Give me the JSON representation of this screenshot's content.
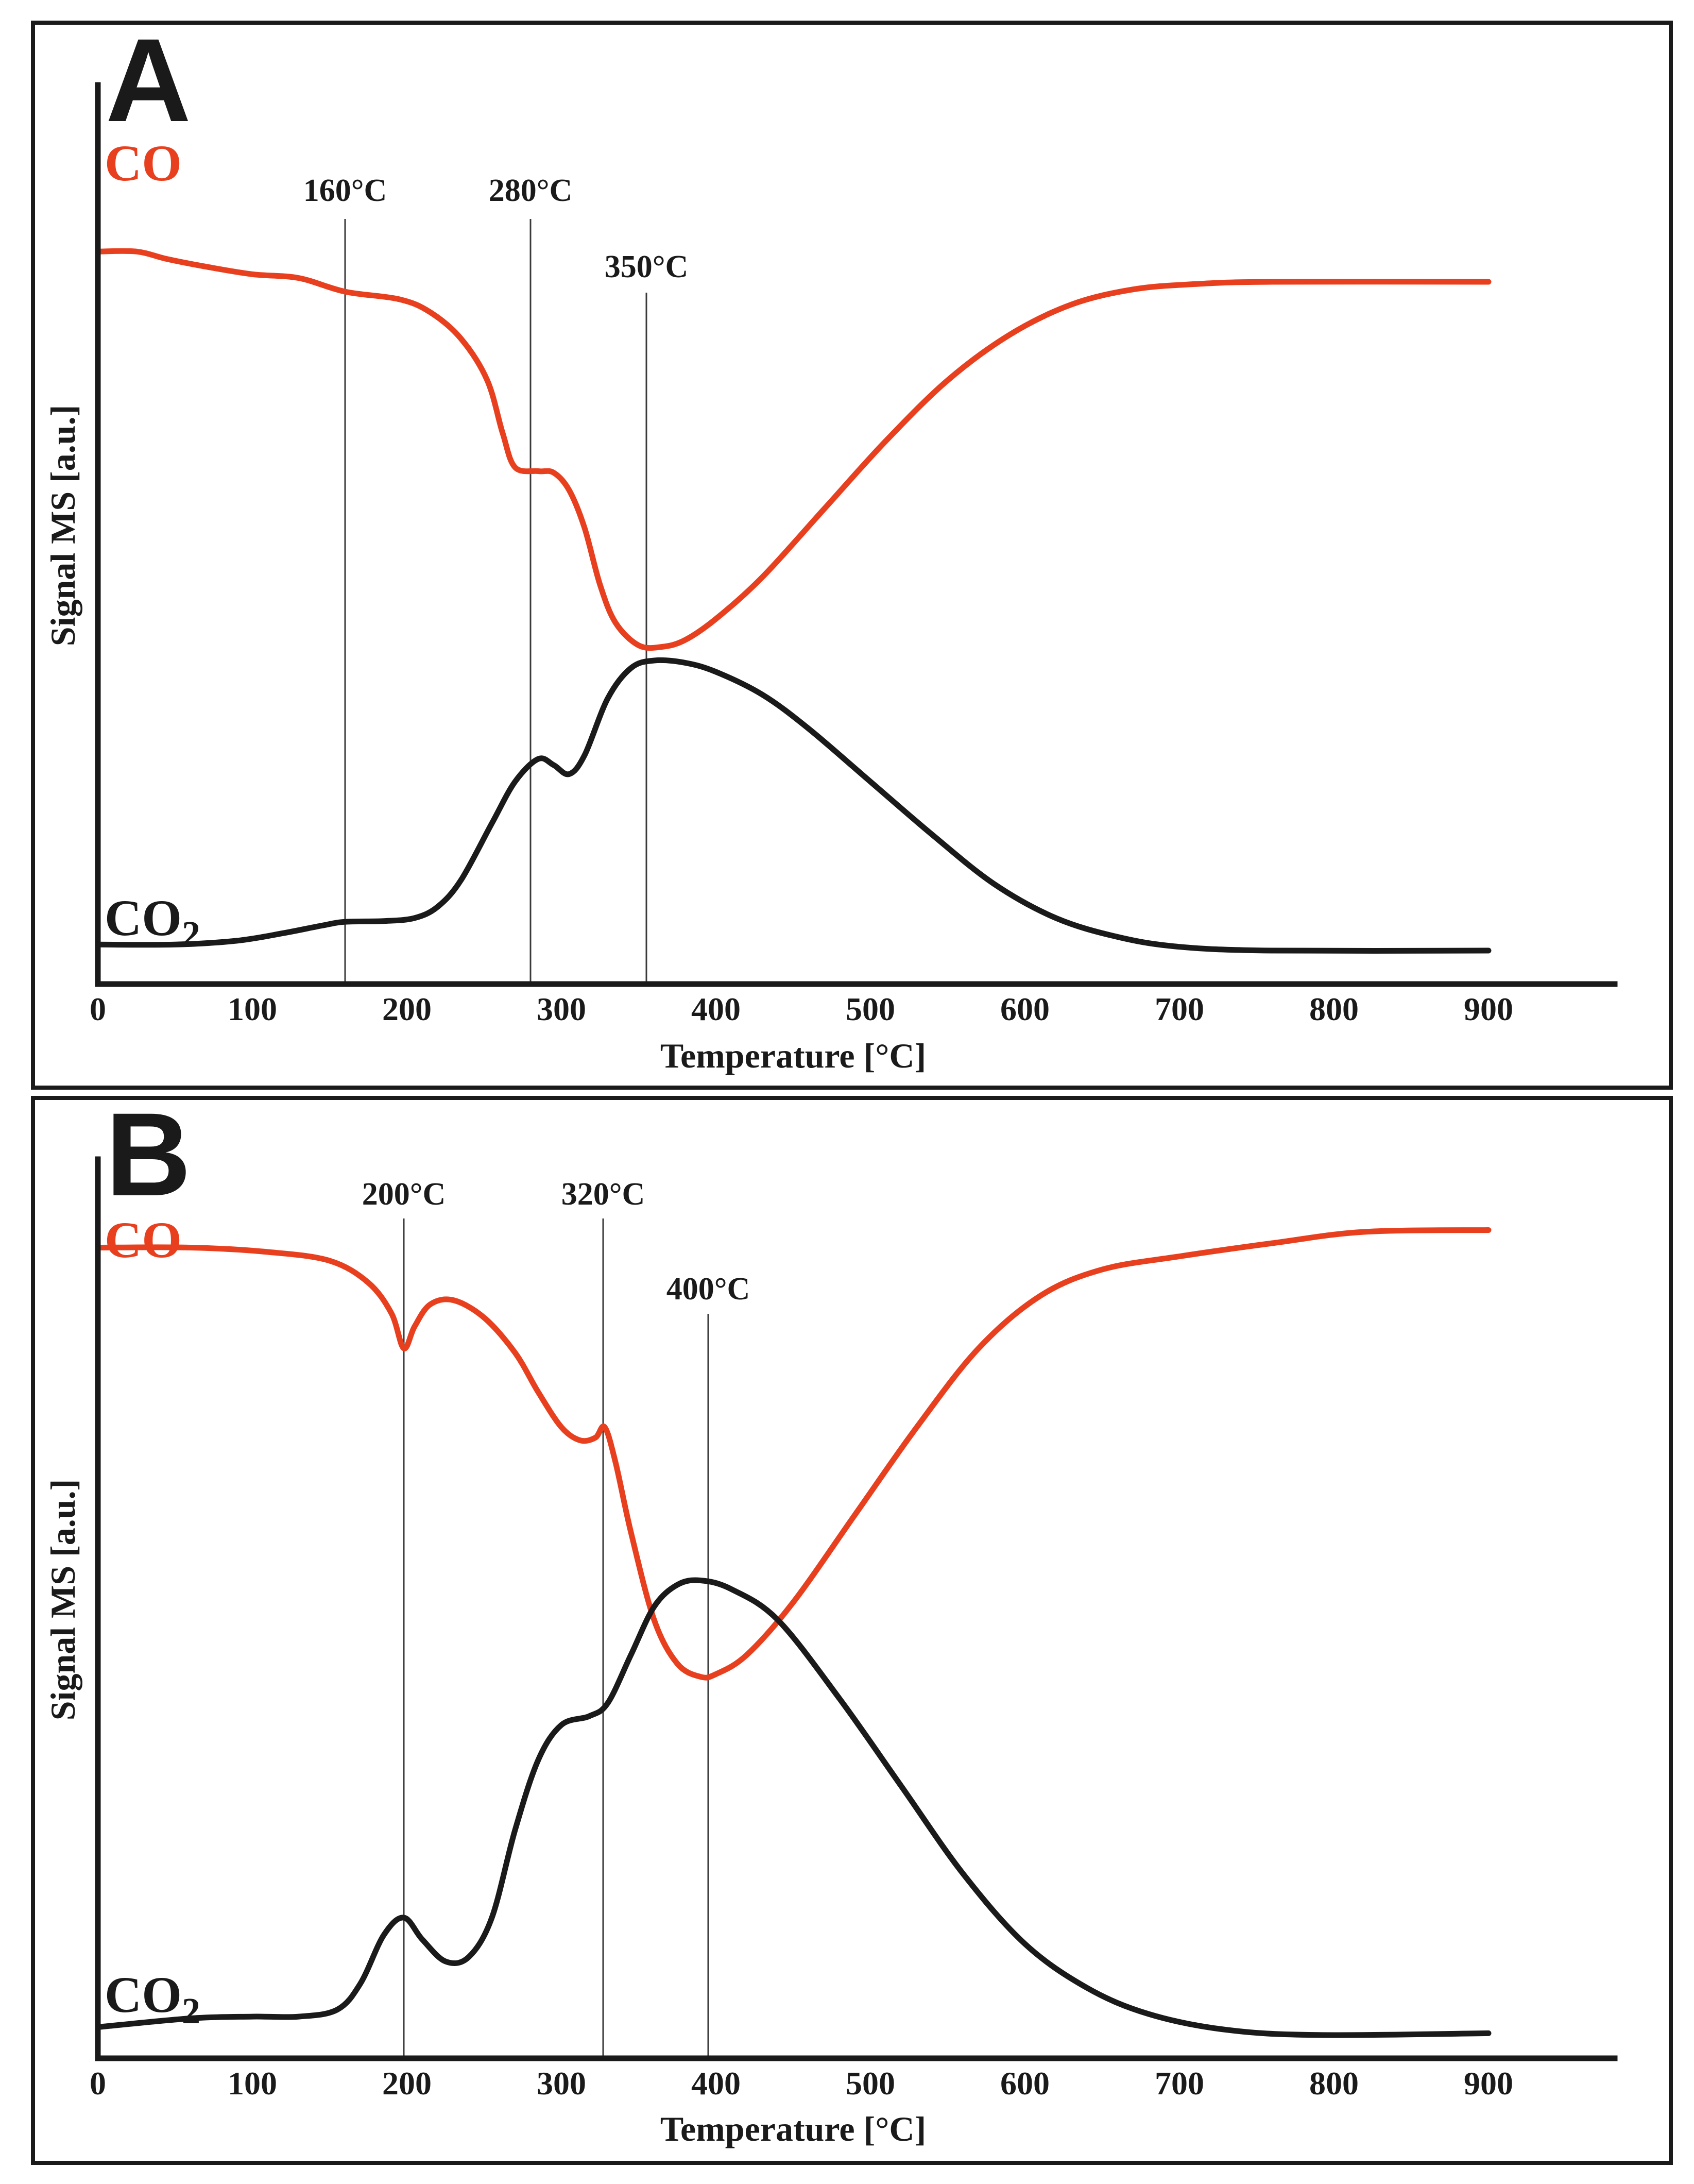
{
  "colors": {
    "CO": "#e8401f",
    "CO2": "#1a1a1a"
  },
  "chart_data": [
    {
      "type": "line",
      "panel_label": "A",
      "xlabel": "Temperature [°C]",
      "ylabel": "Signal MS [a.u.]",
      "xlim": [
        0,
        1000
      ],
      "ylim": [
        0,
        1
      ],
      "x_ticks": [
        0,
        100,
        200,
        300,
        400,
        500,
        600,
        700,
        800,
        900
      ],
      "grid": false,
      "markers": [
        {
          "x": 160,
          "label": "160°C"
        },
        {
          "x": 280,
          "label": "280°C"
        },
        {
          "x": 355,
          "label": "350°C"
        }
      ],
      "series": [
        {
          "name": "CO",
          "name_sub": "",
          "color": "#e8401f",
          "points": [
            [
              0,
              0.94
            ],
            [
              25,
              0.94
            ],
            [
              45,
              0.93
            ],
            [
              70,
              0.92
            ],
            [
              100,
              0.91
            ],
            [
              130,
              0.905
            ],
            [
              160,
              0.887
            ],
            [
              195,
              0.877
            ],
            [
              215,
              0.86
            ],
            [
              235,
              0.825
            ],
            [
              252,
              0.77
            ],
            [
              262,
              0.7
            ],
            [
              270,
              0.655
            ],
            [
              285,
              0.65
            ],
            [
              295,
              0.648
            ],
            [
              305,
              0.625
            ],
            [
              315,
              0.575
            ],
            [
              325,
              0.5
            ],
            [
              335,
              0.45
            ],
            [
              350,
              0.42
            ],
            [
              365,
              0.418
            ],
            [
              380,
              0.427
            ],
            [
              400,
              0.455
            ],
            [
              430,
              0.51
            ],
            [
              470,
              0.6
            ],
            [
              510,
              0.69
            ],
            [
              550,
              0.77
            ],
            [
              590,
              0.83
            ],
            [
              630,
              0.87
            ],
            [
              670,
              0.89
            ],
            [
              710,
              0.897
            ],
            [
              760,
              0.9
            ],
            [
              900,
              0.9
            ]
          ]
        },
        {
          "name": "CO",
          "name_sub": "2",
          "color": "#1a1a1a",
          "points": [
            [
              0,
              0.025
            ],
            [
              50,
              0.025
            ],
            [
              90,
              0.03
            ],
            [
              120,
              0.04
            ],
            [
              145,
              0.05
            ],
            [
              160,
              0.055
            ],
            [
              185,
              0.056
            ],
            [
              205,
              0.06
            ],
            [
              220,
              0.075
            ],
            [
              235,
              0.11
            ],
            [
              255,
              0.185
            ],
            [
              270,
              0.24
            ],
            [
              285,
              0.27
            ],
            [
              295,
              0.262
            ],
            [
              305,
              0.25
            ],
            [
              315,
              0.275
            ],
            [
              330,
              0.35
            ],
            [
              345,
              0.39
            ],
            [
              360,
              0.4
            ],
            [
              380,
              0.397
            ],
            [
              400,
              0.385
            ],
            [
              430,
              0.355
            ],
            [
              460,
              0.31
            ],
            [
              500,
              0.24
            ],
            [
              540,
              0.17
            ],
            [
              580,
              0.105
            ],
            [
              620,
              0.06
            ],
            [
              660,
              0.035
            ],
            [
              700,
              0.022
            ],
            [
              760,
              0.017
            ],
            [
              900,
              0.017
            ]
          ]
        }
      ]
    },
    {
      "type": "line",
      "panel_label": "B",
      "xlabel": "Temperature [°C]",
      "ylabel": "Signal MS [a.u.]",
      "xlim": [
        0,
        1000
      ],
      "ylim": [
        0,
        1
      ],
      "x_ticks": [
        0,
        100,
        200,
        300,
        400,
        500,
        600,
        700,
        800,
        900
      ],
      "grid": false,
      "markers": [
        {
          "x": 198,
          "label": "200°C"
        },
        {
          "x": 327,
          "label": "320°C"
        },
        {
          "x": 395,
          "label": "400°C"
        }
      ],
      "series": [
        {
          "name": "CO",
          "name_sub": "",
          "color": "#e8401f",
          "points": [
            [
              0,
              0.905
            ],
            [
              60,
              0.905
            ],
            [
              110,
              0.9
            ],
            [
              150,
              0.89
            ],
            [
              175,
              0.865
            ],
            [
              190,
              0.83
            ],
            [
              198,
              0.79
            ],
            [
              205,
              0.815
            ],
            [
              215,
              0.84
            ],
            [
              230,
              0.845
            ],
            [
              250,
              0.825
            ],
            [
              270,
              0.785
            ],
            [
              285,
              0.74
            ],
            [
              300,
              0.7
            ],
            [
              312,
              0.685
            ],
            [
              322,
              0.688
            ],
            [
              328,
              0.7
            ],
            [
              335,
              0.66
            ],
            [
              345,
              0.58
            ],
            [
              360,
              0.48
            ],
            [
              375,
              0.43
            ],
            [
              390,
              0.415
            ],
            [
              400,
              0.418
            ],
            [
              420,
              0.44
            ],
            [
              450,
              0.5
            ],
            [
              490,
              0.6
            ],
            [
              530,
              0.7
            ],
            [
              570,
              0.79
            ],
            [
              610,
              0.85
            ],
            [
              650,
              0.88
            ],
            [
              700,
              0.895
            ],
            [
              760,
              0.91
            ],
            [
              820,
              0.923
            ],
            [
              900,
              0.925
            ]
          ]
        },
        {
          "name": "CO",
          "name_sub": "2",
          "color": "#1a1a1a",
          "points": [
            [
              0,
              0.015
            ],
            [
              60,
              0.025
            ],
            [
              100,
              0.027
            ],
            [
              130,
              0.027
            ],
            [
              155,
              0.035
            ],
            [
              170,
              0.065
            ],
            [
              185,
              0.12
            ],
            [
              198,
              0.14
            ],
            [
              210,
              0.115
            ],
            [
              225,
              0.09
            ],
            [
              240,
              0.095
            ],
            [
              255,
              0.14
            ],
            [
              270,
              0.24
            ],
            [
              285,
              0.32
            ],
            [
              300,
              0.36
            ],
            [
              318,
              0.37
            ],
            [
              330,
              0.385
            ],
            [
              345,
              0.44
            ],
            [
              360,
              0.495
            ],
            [
              375,
              0.52
            ],
            [
              390,
              0.525
            ],
            [
              410,
              0.515
            ],
            [
              440,
              0.48
            ],
            [
              480,
              0.39
            ],
            [
              520,
              0.29
            ],
            [
              560,
              0.19
            ],
            [
              600,
              0.11
            ],
            [
              640,
              0.06
            ],
            [
              680,
              0.03
            ],
            [
              730,
              0.012
            ],
            [
              790,
              0.006
            ],
            [
              900,
              0.008
            ]
          ]
        }
      ]
    }
  ]
}
